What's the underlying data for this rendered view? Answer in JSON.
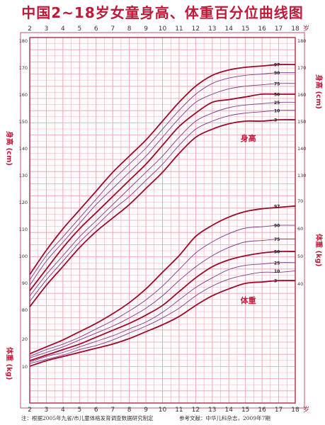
{
  "title": "中国2~18岁女童身高、体重百分位曲线图",
  "footer": {
    "note": "注：根据2005年九省/市儿童体格发育调查数据研究制定",
    "reference": "参考文献：中华儿科杂志，2009年7期"
  },
  "colors": {
    "grid": "#e7a2b0",
    "frame": "#b5294a",
    "curve_major": "#9b0a2c",
    "curve_minor": "#7b3f8c",
    "text": "#c01a3a"
  },
  "chart_data": [
    {
      "type": "line",
      "title": "身高",
      "ylabel": "身高 (cm)",
      "xlabel": "岁",
      "x": [
        2,
        3,
        4,
        5,
        6,
        7,
        8,
        9,
        10,
        11,
        12,
        13,
        14,
        15,
        16,
        17,
        18
      ],
      "xlim": [
        2,
        18
      ],
      "ylim": [
        80,
        180
      ],
      "y_ticks": [
        80,
        90,
        100,
        110,
        120,
        130,
        140,
        150,
        160,
        170,
        180
      ],
      "series": [
        {
          "name": "97",
          "values": [
            93,
            102,
            110,
            117,
            124,
            131,
            137,
            143,
            150,
            157,
            163,
            167,
            169,
            170,
            170.5,
            171,
            171
          ]
        },
        {
          "name": "90",
          "values": [
            91,
            100,
            107,
            114,
            121,
            128,
            134,
            140,
            147,
            154,
            160,
            164,
            166,
            167,
            167.5,
            168,
            168
          ]
        },
        {
          "name": "75",
          "values": [
            89,
            98,
            105,
            112,
            119,
            125,
            131,
            137,
            144,
            151,
            157,
            160,
            162,
            163,
            163.5,
            164,
            164
          ]
        },
        {
          "name": "50",
          "values": [
            87,
            95,
            103,
            110,
            116,
            122,
            128,
            134,
            141,
            148,
            153,
            157,
            158,
            159,
            160,
            160,
            160
          ]
        },
        {
          "name": "25",
          "values": [
            85,
            93,
            100,
            107,
            113,
            119,
            125,
            131,
            137,
            144,
            150,
            153,
            155,
            156,
            156.5,
            157,
            157
          ]
        },
        {
          "name": "10",
          "values": [
            83,
            91,
            98,
            105,
            111,
            117,
            122,
            128,
            134,
            141,
            147,
            150,
            152,
            153,
            153.5,
            154,
            154
          ]
        },
        {
          "name": "3",
          "values": [
            81,
            89,
            96,
            103,
            109,
            114,
            119,
            125,
            131,
            138,
            144,
            147,
            149,
            150,
            150,
            150.5,
            150.5
          ]
        }
      ]
    },
    {
      "type": "line",
      "title": "体重",
      "ylabel": "体重 (kg)",
      "xlabel": "岁",
      "x": [
        2,
        3,
        4,
        5,
        6,
        7,
        8,
        9,
        10,
        11,
        12,
        13,
        14,
        15,
        16,
        17,
        18
      ],
      "xlim": [
        2,
        18
      ],
      "ylim": [
        5,
        75
      ],
      "y_ticks_left": [
        10,
        20
      ],
      "y_ticks_right": [
        40,
        50,
        60,
        70
      ],
      "series": [
        {
          "name": "97",
          "values": [
            14.5,
            17,
            19.5,
            22.5,
            25.5,
            29,
            33,
            38,
            44,
            50,
            57,
            61,
            64,
            66,
            67,
            67.5,
            68
          ]
        },
        {
          "name": "90",
          "values": [
            13.5,
            16,
            18,
            20.5,
            23.5,
            26.5,
            30,
            34,
            39,
            45,
            51,
            55,
            58,
            60,
            60.5,
            61,
            61
          ]
        },
        {
          "name": "75",
          "values": [
            13,
            15,
            17,
            19.5,
            22,
            24.5,
            27.5,
            31,
            35.5,
            41,
            46,
            50,
            53,
            55,
            55.5,
            56,
            56
          ]
        },
        {
          "name": "50",
          "values": [
            12,
            14,
            16,
            18,
            20.5,
            23,
            25.5,
            28.5,
            32,
            37,
            42,
            46,
            48.5,
            50,
            51,
            51.5,
            51.5
          ]
        },
        {
          "name": "25",
          "values": [
            11.5,
            13.5,
            15,
            17,
            19,
            21,
            23.5,
            26,
            29.5,
            34,
            38.5,
            42,
            45,
            46.5,
            47,
            47.5,
            47.5
          ]
        },
        {
          "name": "10",
          "values": [
            11,
            12.5,
            14,
            16,
            17.5,
            19.5,
            22,
            24.5,
            27.5,
            31,
            35.5,
            39,
            41.5,
            43,
            44,
            44,
            44.5
          ]
        },
        {
          "name": "3",
          "values": [
            10,
            12,
            13.5,
            15,
            16.5,
            18,
            20,
            22.5,
            25,
            28,
            32,
            35.5,
            38,
            40,
            40.5,
            41,
            41
          ]
        }
      ]
    }
  ]
}
